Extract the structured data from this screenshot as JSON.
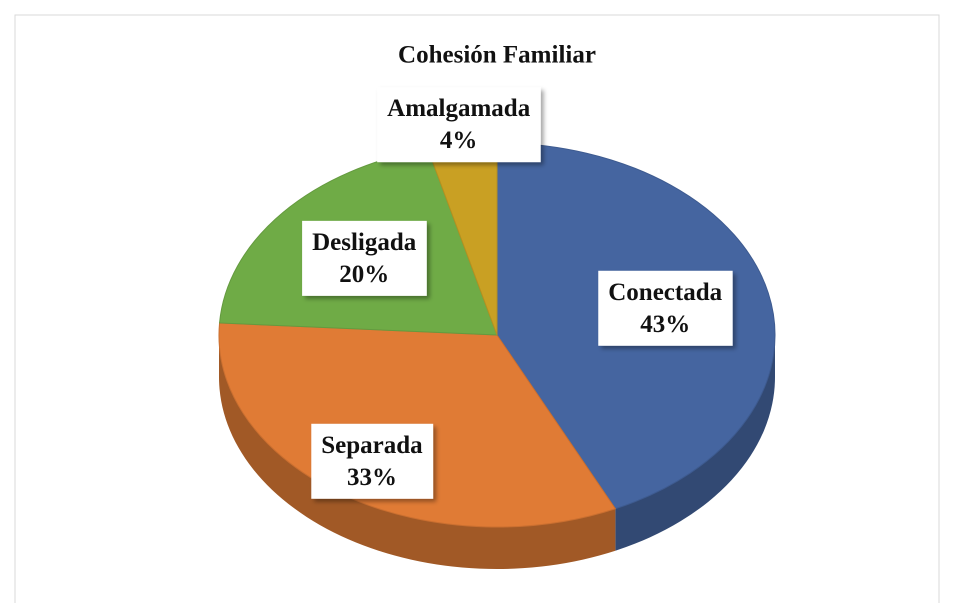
{
  "chart_data": {
    "type": "pie",
    "title": "Cohesión Familiar",
    "categories": [
      "Conectada",
      "Separada",
      "Desligada",
      "Amalgamada"
    ],
    "values": [
      43,
      33,
      20,
      4
    ],
    "value_labels": [
      "43%",
      "33%",
      "20%",
      "4%"
    ],
    "colors": [
      "#4565a0",
      "#e07b35",
      "#6fab46",
      "#c9a023"
    ],
    "three_d": true
  }
}
